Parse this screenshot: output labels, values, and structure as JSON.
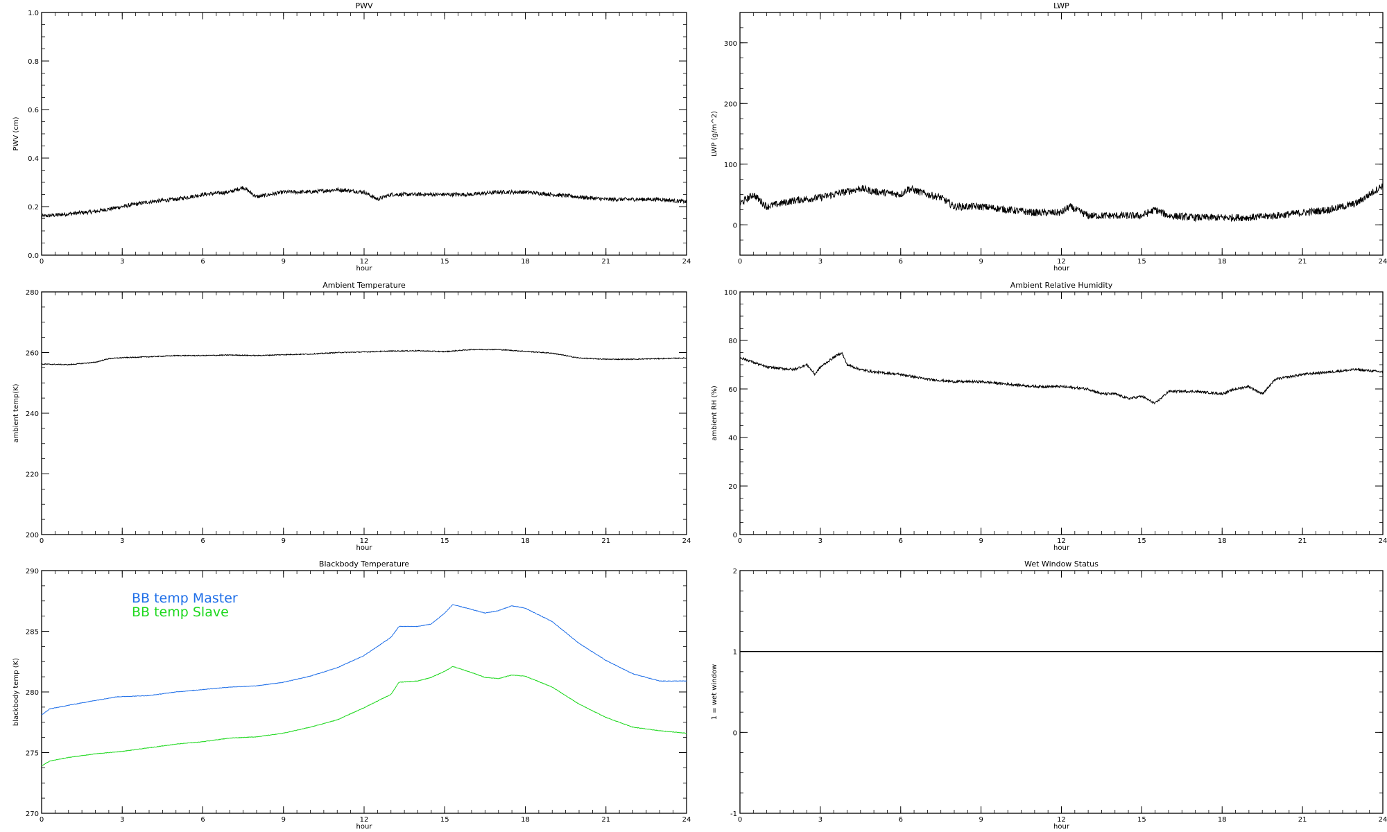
{
  "chart_data": [
    {
      "type": "line",
      "title": "PWV",
      "xlabel": "hour",
      "ylabel": "PWV (cm)",
      "xlim": [
        0,
        24
      ],
      "ylim": [
        0.0,
        1.0
      ],
      "xticks": [
        0,
        3,
        6,
        9,
        12,
        15,
        18,
        21,
        24
      ],
      "xtick_labels": [
        "0",
        "3",
        "6",
        "9",
        "12",
        "15",
        "18",
        "21",
        "24"
      ],
      "yticks": [
        0.0,
        0.2,
        0.4,
        0.6,
        0.8,
        1.0
      ],
      "ytick_labels": [
        "0.0",
        "0.2",
        "0.4",
        "0.6",
        "0.8",
        "1.0"
      ],
      "series": [
        {
          "color": "#000000",
          "noise": 0.008,
          "x": [
            0,
            1,
            2,
            3,
            4,
            5,
            6,
            7,
            7.5,
            8,
            9,
            10,
            11,
            12,
            12.5,
            13,
            14,
            15,
            16,
            17,
            18,
            19,
            20,
            21,
            22,
            23,
            24
          ],
          "y": [
            0.16,
            0.17,
            0.18,
            0.2,
            0.22,
            0.23,
            0.25,
            0.26,
            0.28,
            0.24,
            0.26,
            0.26,
            0.27,
            0.26,
            0.23,
            0.25,
            0.25,
            0.25,
            0.25,
            0.26,
            0.26,
            0.25,
            0.24,
            0.23,
            0.23,
            0.23,
            0.22
          ]
        }
      ]
    },
    {
      "type": "line",
      "title": "LWP",
      "xlabel": "hour",
      "ylabel": "LWP (g/m^2)",
      "xlim": [
        0,
        24
      ],
      "ylim": [
        -50,
        350
      ],
      "xticks": [
        0,
        3,
        6,
        9,
        12,
        15,
        18,
        21,
        24
      ],
      "xtick_labels": [
        "0",
        "3",
        "6",
        "9",
        "12",
        "15",
        "18",
        "21",
        "24"
      ],
      "yticks": [
        0,
        100,
        200,
        300
      ],
      "ytick_labels": [
        "0",
        "100",
        "200",
        "300"
      ],
      "series": [
        {
          "color": "#000000",
          "noise": 6,
          "x": [
            0,
            0.5,
            1,
            2,
            3,
            4,
            4.5,
            5,
            6,
            6.3,
            7,
            7.5,
            8,
            9,
            10,
            11,
            12,
            12.3,
            13,
            14,
            15,
            15.5,
            16,
            17,
            18,
            19,
            20,
            21,
            22,
            23,
            24
          ],
          "y": [
            35,
            50,
            30,
            40,
            45,
            55,
            60,
            55,
            50,
            60,
            50,
            45,
            30,
            30,
            25,
            20,
            20,
            30,
            15,
            15,
            15,
            25,
            15,
            12,
            12,
            12,
            15,
            20,
            25,
            35,
            65
          ]
        }
      ]
    },
    {
      "type": "line",
      "title": "Ambient Temperature",
      "xlabel": "hour",
      "ylabel": "ambient temp(K)",
      "xlim": [
        0,
        24
      ],
      "ylim": [
        200,
        280
      ],
      "xticks": [
        0,
        3,
        6,
        9,
        12,
        15,
        18,
        21,
        24
      ],
      "xtick_labels": [
        "0",
        "3",
        "6",
        "9",
        "12",
        "15",
        "18",
        "21",
        "24"
      ],
      "yticks": [
        200,
        220,
        240,
        260,
        280
      ],
      "ytick_labels": [
        "200",
        "220",
        "240",
        "260",
        "280"
      ],
      "series": [
        {
          "color": "#000000",
          "noise": 0.15,
          "x": [
            0,
            1,
            2,
            2.5,
            3,
            4,
            5,
            6,
            7,
            8,
            9,
            10,
            11,
            12,
            13,
            14,
            15,
            16,
            17,
            18,
            19,
            20,
            21,
            22,
            23,
            24
          ],
          "y": [
            256.2,
            256.0,
            256.8,
            258.0,
            258.3,
            258.6,
            259.0,
            259.0,
            259.2,
            259.0,
            259.3,
            259.5,
            260.0,
            260.2,
            260.5,
            260.6,
            260.3,
            261.0,
            261.0,
            260.4,
            259.8,
            258.2,
            257.8,
            257.8,
            258.0,
            258.2
          ]
        }
      ]
    },
    {
      "type": "line",
      "title": "Ambient Relative Humidity",
      "xlabel": "hour",
      "ylabel": "ambient RH (%)",
      "xlim": [
        0,
        24
      ],
      "ylim": [
        0,
        100
      ],
      "xticks": [
        0,
        3,
        6,
        9,
        12,
        15,
        18,
        21,
        24
      ],
      "xtick_labels": [
        "0",
        "3",
        "6",
        "9",
        "12",
        "15",
        "18",
        "21",
        "24"
      ],
      "yticks": [
        0,
        20,
        40,
        60,
        80,
        100
      ],
      "ytick_labels": [
        "0",
        "20",
        "40",
        "60",
        "80",
        "100"
      ],
      "series": [
        {
          "color": "#000000",
          "noise": 0.5,
          "x": [
            0,
            0.5,
            1,
            2,
            2.5,
            2.8,
            3,
            3.5,
            3.8,
            4,
            4.5,
            5,
            6,
            7,
            8,
            9,
            10,
            11,
            12,
            13,
            13.5,
            14,
            14.5,
            15,
            15.5,
            16,
            17,
            18,
            18.5,
            19,
            19.5,
            20,
            21,
            22,
            23,
            24
          ],
          "y": [
            73,
            71,
            69,
            68,
            70,
            66,
            69,
            73,
            75,
            70,
            68,
            67,
            66,
            64,
            63,
            63,
            62,
            61,
            61,
            60,
            58,
            58,
            56,
            57,
            54,
            59,
            59,
            58,
            60,
            61,
            58,
            64,
            66,
            67,
            68,
            67
          ]
        }
      ]
    },
    {
      "type": "line",
      "title": "Blackbody Temperature",
      "xlabel": "hour",
      "ylabel": "blackbody temp (K)",
      "xlim": [
        0,
        24
      ],
      "ylim": [
        270,
        290
      ],
      "xticks": [
        0,
        3,
        6,
        9,
        12,
        15,
        18,
        21,
        24
      ],
      "xtick_labels": [
        "0",
        "3",
        "6",
        "9",
        "12",
        "15",
        "18",
        "21",
        "24"
      ],
      "yticks": [
        270,
        275,
        280,
        285,
        290
      ],
      "ytick_labels": [
        "270",
        "275",
        "280",
        "285",
        "290"
      ],
      "legend_position": "top-left",
      "series": [
        {
          "name": "BB temp Master",
          "color": "#1f6fe8",
          "noise": 0.02,
          "x": [
            0,
            0.3,
            1,
            2,
            2.8,
            4,
            5,
            6,
            7,
            8,
            9,
            10,
            11,
            12,
            13,
            13.3,
            14,
            14.5,
            15,
            15.3,
            16,
            16.5,
            17,
            17.5,
            18,
            19,
            20,
            21,
            22,
            23,
            24
          ],
          "y": [
            278.1,
            278.6,
            278.9,
            279.3,
            279.6,
            279.7,
            280.0,
            280.2,
            280.4,
            280.5,
            280.8,
            281.3,
            282.0,
            283.0,
            284.5,
            285.4,
            285.4,
            285.6,
            286.5,
            287.2,
            286.8,
            286.5,
            286.7,
            287.1,
            286.9,
            285.8,
            284.0,
            282.6,
            281.5,
            280.9,
            280.9
          ]
        },
        {
          "name": "BB temp Slave",
          "color": "#1ed81e",
          "noise": 0.02,
          "x": [
            0,
            0.3,
            1,
            2,
            3,
            4,
            5,
            6,
            7,
            8,
            9,
            10,
            11,
            12,
            13,
            13.3,
            14,
            14.5,
            15,
            15.3,
            16,
            16.5,
            17,
            17.5,
            18,
            19,
            20,
            21,
            22,
            23,
            24
          ],
          "y": [
            273.9,
            274.3,
            274.6,
            274.9,
            275.1,
            275.4,
            275.7,
            275.9,
            276.2,
            276.3,
            276.6,
            277.1,
            277.7,
            278.7,
            279.8,
            280.8,
            280.9,
            281.2,
            281.7,
            282.1,
            281.6,
            281.2,
            281.1,
            281.4,
            281.3,
            280.4,
            279.0,
            277.9,
            277.1,
            276.8,
            276.6
          ]
        }
      ]
    },
    {
      "type": "line",
      "title": "Wet Window Status",
      "xlabel": "hour",
      "ylabel": "1 = wet window",
      "xlim": [
        0,
        24
      ],
      "ylim": [
        -1,
        2
      ],
      "xticks": [
        0,
        3,
        6,
        9,
        12,
        15,
        18,
        21,
        24
      ],
      "xtick_labels": [
        "0",
        "3",
        "6",
        "9",
        "12",
        "15",
        "18",
        "21",
        "24"
      ],
      "yticks": [
        -1,
        0,
        1,
        2
      ],
      "ytick_labels": [
        "-1",
        "0",
        "1",
        "2"
      ],
      "series": [
        {
          "color": "#000000",
          "noise": 0,
          "x": [
            0,
            24
          ],
          "y": [
            1,
            1
          ]
        }
      ]
    }
  ]
}
